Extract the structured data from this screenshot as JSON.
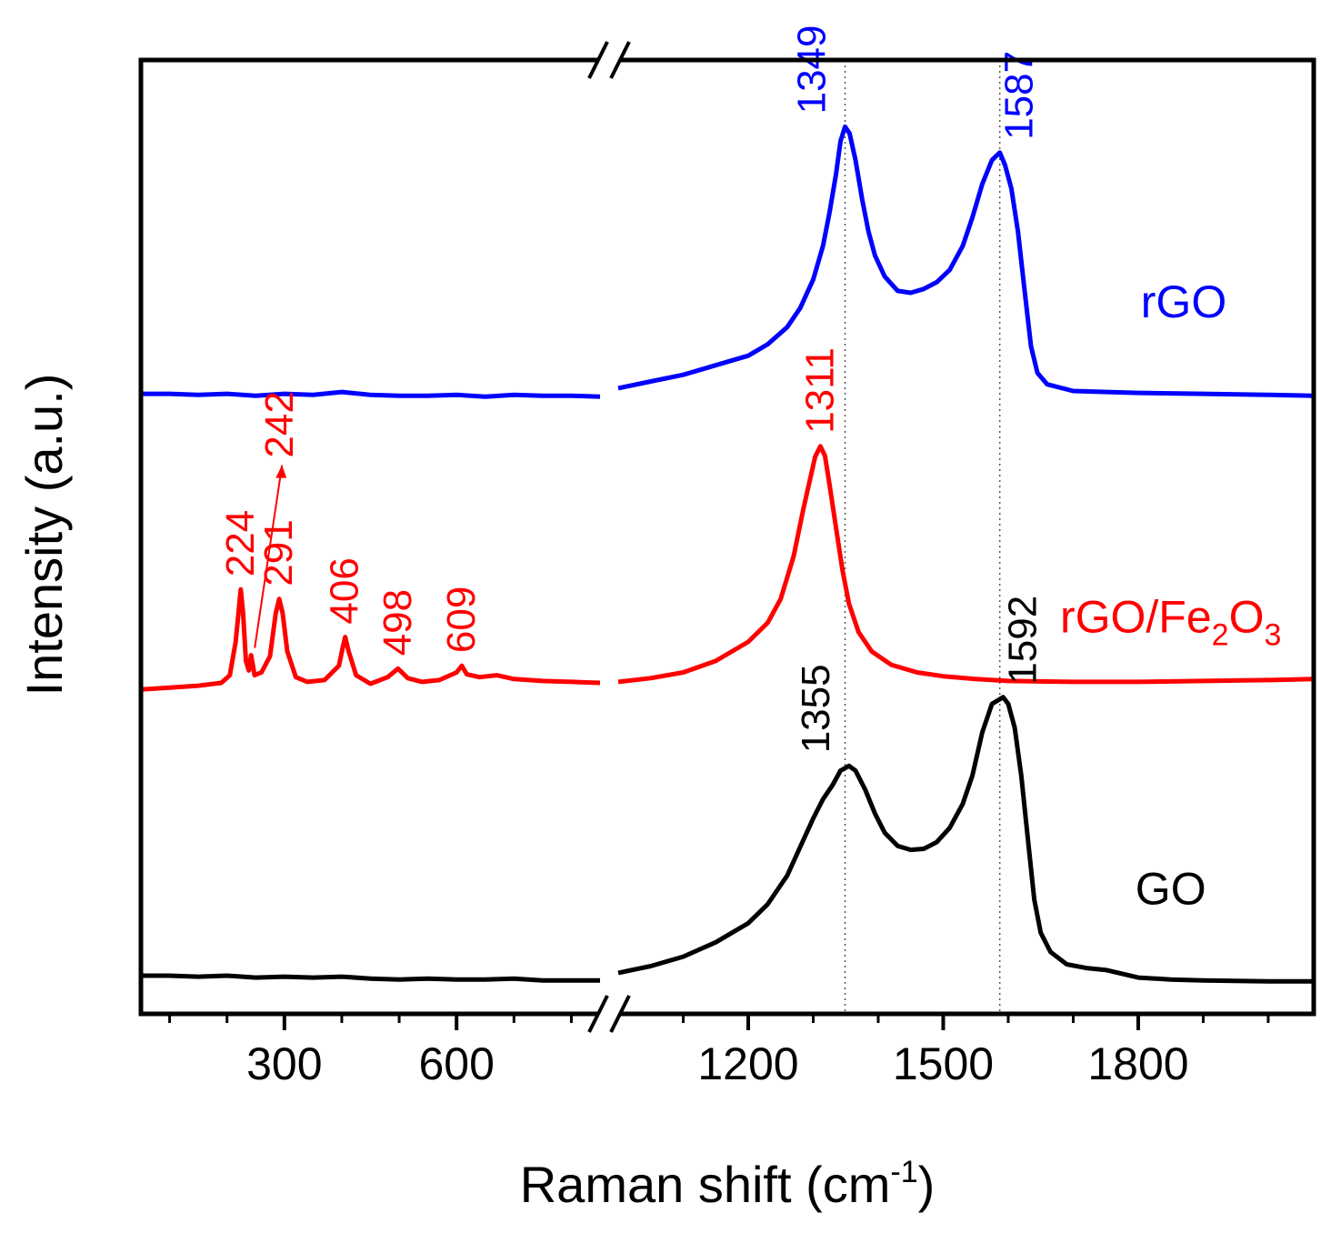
{
  "chart_data": {
    "type": "line",
    "xlabel": "Raman shift (cm",
    "xlabel_sup": "-1",
    "xlabel_end": ")",
    "ylabel": "Intensity (a.u.)",
    "axis_break": {
      "left_segment": [
        50,
        850
      ],
      "right_segment": [
        1000,
        2070
      ]
    },
    "xlim": [
      50,
      2070
    ],
    "ylim": [
      0,
      100
    ],
    "y_ticks": "none",
    "x_ticks": [
      {
        "value": 300,
        "label": "300"
      },
      {
        "value": 600,
        "label": "600"
      },
      {
        "value": 1200,
        "label": "1200"
      },
      {
        "value": 1500,
        "label": "1500"
      },
      {
        "value": 1800,
        "label": "1800"
      }
    ],
    "x_minor_ticks": [
      100,
      200,
      400,
      500,
      700,
      800,
      1100,
      1300,
      1400,
      1600,
      1700,
      1900,
      2000
    ],
    "reference_lines": [
      1349,
      1587
    ],
    "series": [
      {
        "name": "rGO",
        "color": "#0000ff",
        "label_x": 1870,
        "label_y": 73,
        "points": [
          [
            50,
            65
          ],
          [
            100,
            65
          ],
          [
            150,
            64.9
          ],
          [
            200,
            65
          ],
          [
            250,
            64.8
          ],
          [
            300,
            65
          ],
          [
            350,
            64.9
          ],
          [
            400,
            65.2
          ],
          [
            450,
            64.9
          ],
          [
            500,
            64.8
          ],
          [
            550,
            64.8
          ],
          [
            600,
            64.9
          ],
          [
            650,
            64.7
          ],
          [
            700,
            64.9
          ],
          [
            750,
            64.8
          ],
          [
            800,
            64.8
          ],
          [
            850,
            64.7
          ],
          [
            1000,
            65.6
          ],
          [
            1050,
            66.3
          ],
          [
            1100,
            67
          ],
          [
            1150,
            68
          ],
          [
            1200,
            69
          ],
          [
            1230,
            70.2
          ],
          [
            1260,
            72
          ],
          [
            1280,
            74
          ],
          [
            1300,
            77
          ],
          [
            1315,
            80.5
          ],
          [
            1325,
            84
          ],
          [
            1335,
            88
          ],
          [
            1342,
            91.5
          ],
          [
            1349,
            93
          ],
          [
            1356,
            92.3
          ],
          [
            1365,
            89.5
          ],
          [
            1375,
            85.5
          ],
          [
            1385,
            82
          ],
          [
            1395,
            79.5
          ],
          [
            1410,
            77.3
          ],
          [
            1430,
            75.8
          ],
          [
            1450,
            75.6
          ],
          [
            1470,
            76
          ],
          [
            1490,
            76.7
          ],
          [
            1510,
            78
          ],
          [
            1530,
            80.5
          ],
          [
            1545,
            83.5
          ],
          [
            1560,
            87
          ],
          [
            1575,
            89.5
          ],
          [
            1587,
            90.3
          ],
          [
            1595,
            89
          ],
          [
            1605,
            86.5
          ],
          [
            1615,
            82
          ],
          [
            1625,
            76
          ],
          [
            1635,
            70
          ],
          [
            1645,
            67.2
          ],
          [
            1660,
            66
          ],
          [
            1700,
            65.3
          ],
          [
            1800,
            65.1
          ],
          [
            1900,
            65
          ],
          [
            2000,
            64.9
          ],
          [
            2070,
            64.8
          ]
        ]
      },
      {
        "name": "rGO/Fe",
        "name_sub1": "2",
        "name_mid": "O",
        "name_sub2": "3",
        "color": "#ff0000",
        "label_x": 1850,
        "label_y": 40,
        "points": [
          [
            50,
            34
          ],
          [
            100,
            34.2
          ],
          [
            150,
            34.4
          ],
          [
            190,
            34.7
          ],
          [
            205,
            35.5
          ],
          [
            215,
            39
          ],
          [
            220,
            42
          ],
          [
            224,
            44.5
          ],
          [
            228,
            42
          ],
          [
            233,
            37
          ],
          [
            238,
            36
          ],
          [
            242,
            37.6
          ],
          [
            248,
            35.5
          ],
          [
            260,
            35.8
          ],
          [
            275,
            37.5
          ],
          [
            285,
            42
          ],
          [
            291,
            43.5
          ],
          [
            297,
            42
          ],
          [
            305,
            38
          ],
          [
            320,
            35.3
          ],
          [
            340,
            34.8
          ],
          [
            370,
            35
          ],
          [
            395,
            36.5
          ],
          [
            402,
            38.5
          ],
          [
            406,
            39.5
          ],
          [
            412,
            38
          ],
          [
            425,
            35.5
          ],
          [
            450,
            34.6
          ],
          [
            480,
            35.3
          ],
          [
            498,
            36.2
          ],
          [
            515,
            35.2
          ],
          [
            540,
            34.8
          ],
          [
            570,
            35
          ],
          [
            600,
            35.8
          ],
          [
            609,
            36.5
          ],
          [
            618,
            35.6
          ],
          [
            640,
            35.3
          ],
          [
            670,
            35.5
          ],
          [
            700,
            35.1
          ],
          [
            750,
            34.9
          ],
          [
            800,
            34.8
          ],
          [
            850,
            34.7
          ],
          [
            1000,
            34.8
          ],
          [
            1050,
            35.2
          ],
          [
            1100,
            35.8
          ],
          [
            1150,
            37
          ],
          [
            1200,
            39
          ],
          [
            1230,
            41
          ],
          [
            1250,
            43.5
          ],
          [
            1270,
            48
          ],
          [
            1285,
            53
          ],
          [
            1295,
            56
          ],
          [
            1303,
            58.4
          ],
          [
            1311,
            59.5
          ],
          [
            1318,
            58.5
          ],
          [
            1325,
            55.5
          ],
          [
            1335,
            51
          ],
          [
            1345,
            46.5
          ],
          [
            1355,
            43
          ],
          [
            1370,
            40
          ],
          [
            1390,
            38
          ],
          [
            1420,
            36.6
          ],
          [
            1460,
            35.8
          ],
          [
            1500,
            35.4
          ],
          [
            1550,
            35.1
          ],
          [
            1600,
            34.9
          ],
          [
            1700,
            34.8
          ],
          [
            1800,
            34.8
          ],
          [
            1900,
            34.9
          ],
          [
            2000,
            35
          ],
          [
            2070,
            35.1
          ]
        ]
      },
      {
        "name": "GO",
        "color": "#000000",
        "label_x": 1850,
        "label_y": 11.5,
        "points": [
          [
            50,
            4
          ],
          [
            100,
            4
          ],
          [
            150,
            3.9
          ],
          [
            200,
            4
          ],
          [
            250,
            3.8
          ],
          [
            300,
            3.9
          ],
          [
            350,
            3.8
          ],
          [
            400,
            3.9
          ],
          [
            450,
            3.7
          ],
          [
            500,
            3.6
          ],
          [
            550,
            3.7
          ],
          [
            600,
            3.6
          ],
          [
            650,
            3.6
          ],
          [
            700,
            3.7
          ],
          [
            750,
            3.5
          ],
          [
            800,
            3.5
          ],
          [
            850,
            3.5
          ],
          [
            1000,
            4.3
          ],
          [
            1050,
            5
          ],
          [
            1100,
            6
          ],
          [
            1150,
            7.5
          ],
          [
            1200,
            9.5
          ],
          [
            1230,
            11.5
          ],
          [
            1260,
            14.5
          ],
          [
            1280,
            17.5
          ],
          [
            1300,
            20.5
          ],
          [
            1315,
            22.5
          ],
          [
            1330,
            24
          ],
          [
            1342,
            25.5
          ],
          [
            1355,
            26
          ],
          [
            1365,
            25.5
          ],
          [
            1380,
            23.5
          ],
          [
            1395,
            21
          ],
          [
            1410,
            19
          ],
          [
            1430,
            17.6
          ],
          [
            1450,
            17.2
          ],
          [
            1470,
            17.3
          ],
          [
            1490,
            18
          ],
          [
            1510,
            19.5
          ],
          [
            1530,
            22
          ],
          [
            1545,
            25
          ],
          [
            1560,
            29.5
          ],
          [
            1575,
            32.5
          ],
          [
            1592,
            33.2
          ],
          [
            1600,
            32.5
          ],
          [
            1610,
            30
          ],
          [
            1620,
            25
          ],
          [
            1630,
            18.5
          ],
          [
            1640,
            12
          ],
          [
            1650,
            8.5
          ],
          [
            1665,
            6.5
          ],
          [
            1690,
            5.2
          ],
          [
            1720,
            4.8
          ],
          [
            1750,
            4.6
          ],
          [
            1800,
            3.8
          ],
          [
            1850,
            3.6
          ],
          [
            1900,
            3.5
          ],
          [
            2000,
            3.4
          ],
          [
            2070,
            3.4
          ]
        ]
      }
    ],
    "peak_labels": [
      {
        "text": "1349",
        "x": 1349,
        "color": "#0000ff",
        "pos": "left",
        "anchor_y": 93
      },
      {
        "text": "1587",
        "x": 1587,
        "color": "#0000ff",
        "pos": "right",
        "anchor_y": 90.3
      },
      {
        "text": "1311",
        "x": 1311,
        "color": "#ff0000",
        "pos": "center",
        "anchor_y": 59.5
      },
      {
        "text": "224",
        "x": 224,
        "color": "#ff0000",
        "pos": "center",
        "anchor_y": 44.5
      },
      {
        "text": "242",
        "x": 242,
        "color": "#ff0000",
        "pos": "arrow",
        "anchor_y": 37.6
      },
      {
        "text": "291",
        "x": 291,
        "color": "#ff0000",
        "pos": "center",
        "anchor_y": 43.5
      },
      {
        "text": "406",
        "x": 406,
        "color": "#ff0000",
        "pos": "center",
        "anchor_y": 39.5
      },
      {
        "text": "498",
        "x": 498,
        "color": "#ff0000",
        "pos": "center",
        "anchor_y": 36.2
      },
      {
        "text": "609",
        "x": 609,
        "color": "#ff0000",
        "pos": "center",
        "anchor_y": 36.5
      },
      {
        "text": "1355",
        "x": 1355,
        "color": "#000000",
        "pos": "left",
        "anchor_y": 26
      },
      {
        "text": "1592",
        "x": 1592,
        "color": "#000000",
        "pos": "right",
        "anchor_y": 33.2
      }
    ]
  }
}
